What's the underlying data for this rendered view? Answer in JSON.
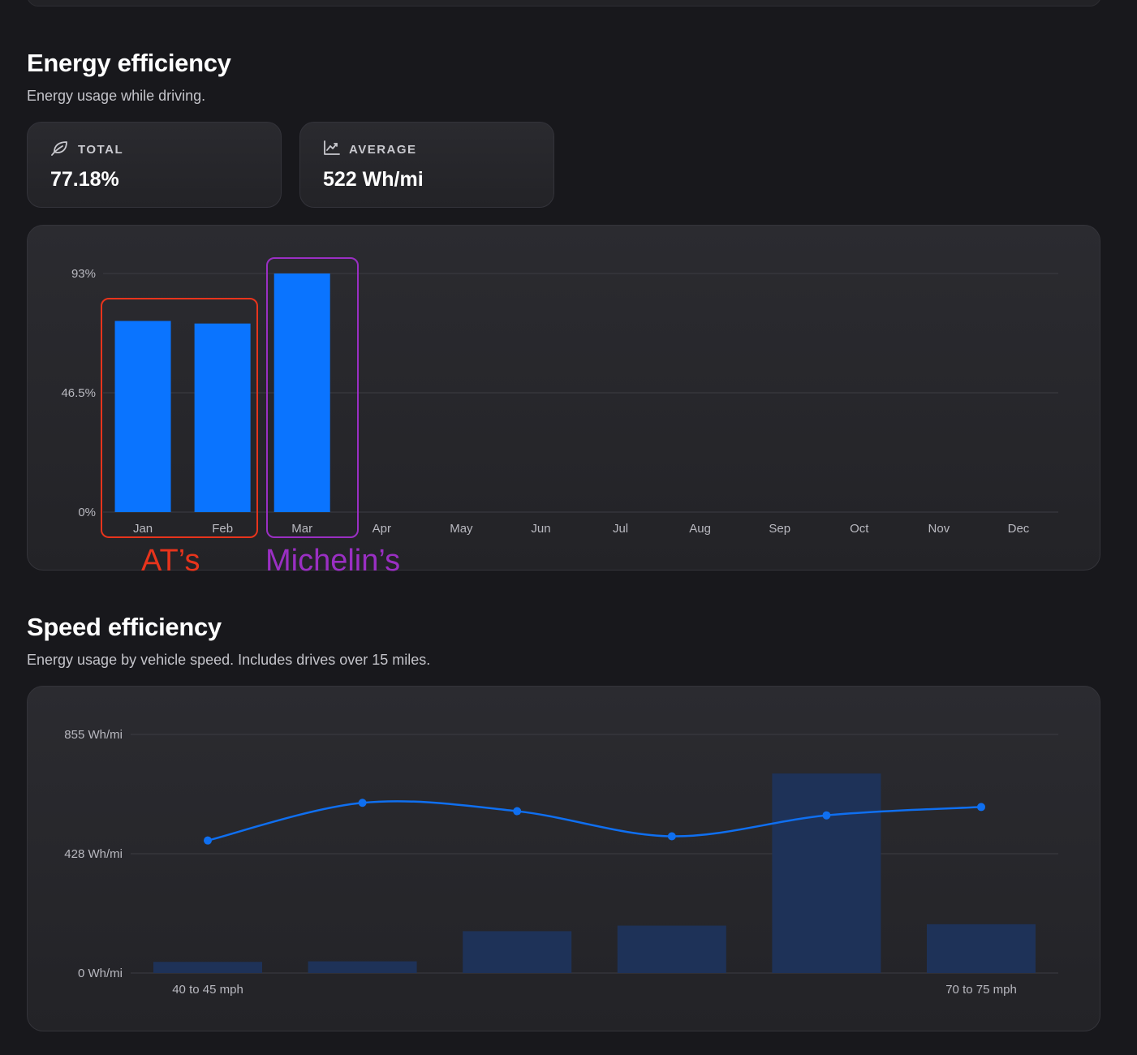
{
  "energy": {
    "title": "Energy efficiency",
    "subtitle": "Energy usage while driving.",
    "stats": [
      {
        "icon": "leaf-icon",
        "label": "TOTAL",
        "value": "77.18%"
      },
      {
        "icon": "line-chart-icon",
        "label": "AVERAGE",
        "value": "522 Wh/mi"
      }
    ]
  },
  "speed": {
    "title": "Speed efficiency",
    "subtitle": "Energy usage by vehicle speed. Includes drives over 15 miles."
  },
  "annotations": {
    "group1": {
      "text": "AT’s",
      "color": "#e8341c"
    },
    "group2": {
      "text": "Michelin’s",
      "color": "#9a2fc3"
    }
  },
  "colors": {
    "bar": "#0a74ff",
    "speed_bar": "#1e3258",
    "line": "#0f6ff0",
    "grid": "#3c3c43"
  },
  "chart_data": [
    {
      "type": "bar",
      "categories": [
        "Jan",
        "Feb",
        "Mar",
        "Apr",
        "May",
        "Jun",
        "Jul",
        "Aug",
        "Sep",
        "Oct",
        "Nov",
        "Dec"
      ],
      "values": [
        74.5,
        73.5,
        93,
        null,
        null,
        null,
        null,
        null,
        null,
        null,
        null,
        null
      ],
      "ylim": [
        0,
        93
      ],
      "yticks": [
        "0%",
        "46.5%",
        "93%"
      ],
      "grid": true
    },
    {
      "type": "bar",
      "categories": [
        "40 to 45 mph",
        "",
        "",
        "",
        "",
        "70 to 75 mph"
      ],
      "series": [
        {
          "values": [
            40,
            42,
            150,
            170,
            715,
            175
          ]
        },
        {
          "values": [
            475,
            610,
            580,
            490,
            565,
            595
          ]
        }
      ],
      "ylim": [
        0,
        855
      ],
      "yticks": [
        "0 Wh/mi",
        "428 Wh/mi",
        "855 Wh/mi"
      ],
      "grid": true
    }
  ]
}
